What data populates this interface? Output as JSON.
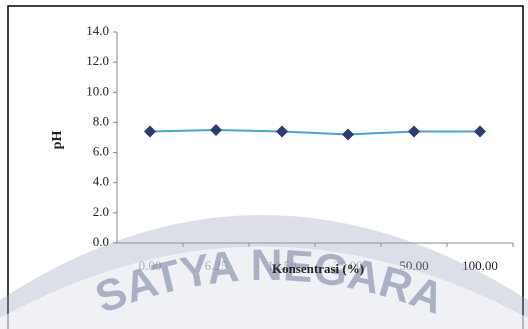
{
  "chart_data": {
    "type": "line",
    "categories": [
      "0.00",
      "6.25",
      "12.50",
      "25.00",
      "50.00",
      "100.00"
    ],
    "series": [
      {
        "name": "pH",
        "color": "#4aa3cf",
        "marker_color": "#2e3b6e",
        "values": [
          7.4,
          7.5,
          7.4,
          7.2,
          7.4,
          7.4
        ]
      }
    ],
    "ylabel": "pH",
    "xlabel": "Konsentrasi (%)",
    "ylim": [
      0,
      14
    ],
    "yticks": [
      {
        "value": 0,
        "label": "0.0"
      },
      {
        "value": 2,
        "label": "2.0"
      },
      {
        "value": 4,
        "label": "4.0"
      },
      {
        "value": 6,
        "label": "6.0"
      },
      {
        "value": 8,
        "label": "8.0"
      },
      {
        "value": 10,
        "label": "10.0"
      },
      {
        "value": 12,
        "label": "12.0"
      },
      {
        "value": 14,
        "label": "14.0"
      }
    ],
    "grid": false,
    "watermark": "SATYA NEGARA"
  }
}
